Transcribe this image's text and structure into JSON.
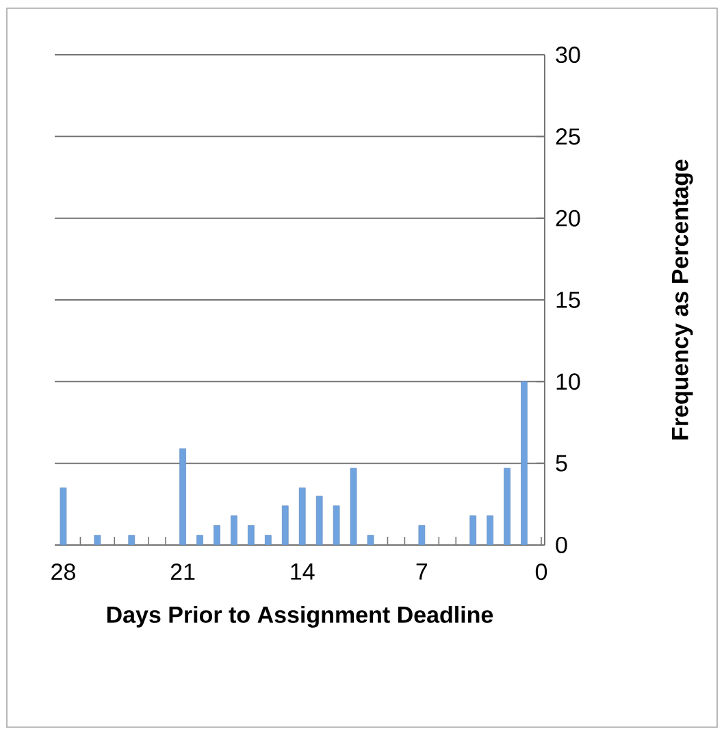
{
  "chart_data": {
    "type": "bar",
    "xlabel": "Days Prior to Assignment Deadline",
    "ylabel": "Frequency as Percentage",
    "x": [
      28,
      26,
      24,
      21,
      20,
      19,
      18,
      17,
      16,
      15,
      14,
      13,
      12,
      11,
      10,
      7,
      4,
      3,
      2,
      1
    ],
    "values": [
      3.5,
      0.6,
      0.6,
      5.9,
      0.6,
      1.2,
      1.8,
      1.2,
      0.6,
      2.4,
      3.5,
      3.0,
      2.4,
      4.7,
      0.6,
      1.2,
      1.8,
      1.8,
      4.7,
      10.0
    ],
    "color": "#6fa3e0",
    "xlim": [
      28.5,
      -0.2
    ],
    "xticks": [
      28,
      21,
      14,
      7,
      0
    ],
    "ylim": [
      0,
      30
    ],
    "yticks": [
      0,
      5,
      10,
      15,
      20,
      25,
      30
    ],
    "grid": "y"
  }
}
